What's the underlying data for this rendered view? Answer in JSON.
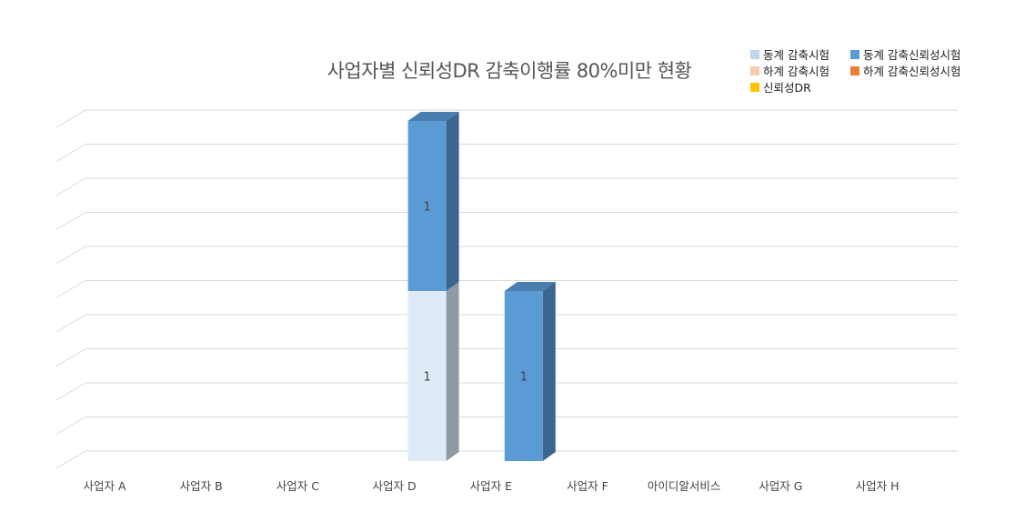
{
  "chart_data": {
    "type": "bar",
    "stacked": true,
    "three_d": true,
    "title": "사업자별 신뢰성DR 감축이행률 80%미만 현황",
    "xlabel": "",
    "ylabel": "",
    "categories": [
      "사업자 A",
      "사업자 B",
      "사업자 C",
      "사업자 D",
      "사업자 E",
      "사업자 F",
      "아이디알서비스",
      "사업자 G",
      "사업자 H"
    ],
    "ylim": [
      0,
      2.1
    ],
    "grid": true,
    "legend_position": "top-right",
    "series": [
      {
        "name": "동계 감축시험",
        "color": "#BDD7EE",
        "values": [
          0,
          0,
          0,
          1,
          0,
          0,
          0,
          0,
          0
        ]
      },
      {
        "name": "동계 감축신뢰성시험",
        "color": "#5B9BD5",
        "values": [
          0,
          0,
          0,
          1,
          1,
          0,
          0,
          0,
          0
        ]
      },
      {
        "name": "하계 감축시험",
        "color": "#F8CBAD",
        "values": [
          0,
          0,
          0,
          0,
          0,
          0,
          0,
          0,
          0
        ]
      },
      {
        "name": "하계 감축신뢰성시험",
        "color": "#ED7D31",
        "values": [
          0,
          0,
          0,
          0,
          0,
          0,
          0,
          0,
          0
        ]
      },
      {
        "name": "신뢰성DR",
        "color": "#FFC000",
        "values": [
          0,
          0,
          0,
          0,
          0,
          0,
          0,
          0,
          0
        ]
      }
    ]
  }
}
